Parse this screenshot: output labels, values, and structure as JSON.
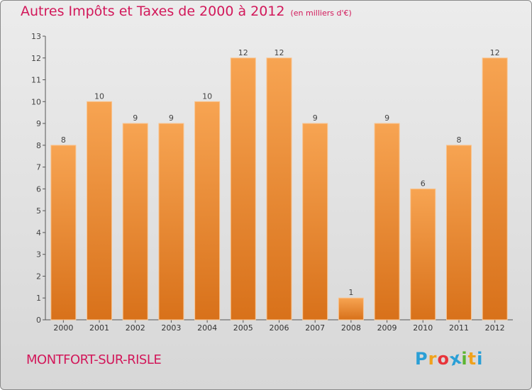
{
  "header": {
    "title": "Autres Impôts et Taxes de 2000 à 2012",
    "unit": "(en milliers d'€)"
  },
  "footer": {
    "place": "MONTFORT-SUR-RISLE",
    "logo_letters": [
      "P",
      "r",
      "o",
      "x",
      "i",
      "t",
      "i"
    ],
    "logo_colors": [
      "#2a9fd6",
      "#f0a21c",
      "#e8343a",
      "#2a9fd6",
      "#5cb531",
      "#f0a21c",
      "#2a9fd6"
    ]
  },
  "chart_data": {
    "type": "bar",
    "title": "Autres Impôts et Taxes de 2000 à 2012",
    "ylabel": "(en milliers d'€)",
    "categories": [
      "2000",
      "2001",
      "2002",
      "2003",
      "2004",
      "2005",
      "2006",
      "2007",
      "2008",
      "2009",
      "2010",
      "2011",
      "2012"
    ],
    "values": [
      8,
      10,
      9,
      9,
      10,
      12,
      12,
      9,
      1,
      9,
      6,
      8,
      12
    ],
    "ylim": [
      0,
      13
    ],
    "yticks": [
      0,
      1,
      2,
      3,
      4,
      5,
      6,
      7,
      8,
      9,
      10,
      11,
      12,
      13
    ],
    "grid": false,
    "bar_color": "#ef8b2c",
    "value_labels": true
  }
}
